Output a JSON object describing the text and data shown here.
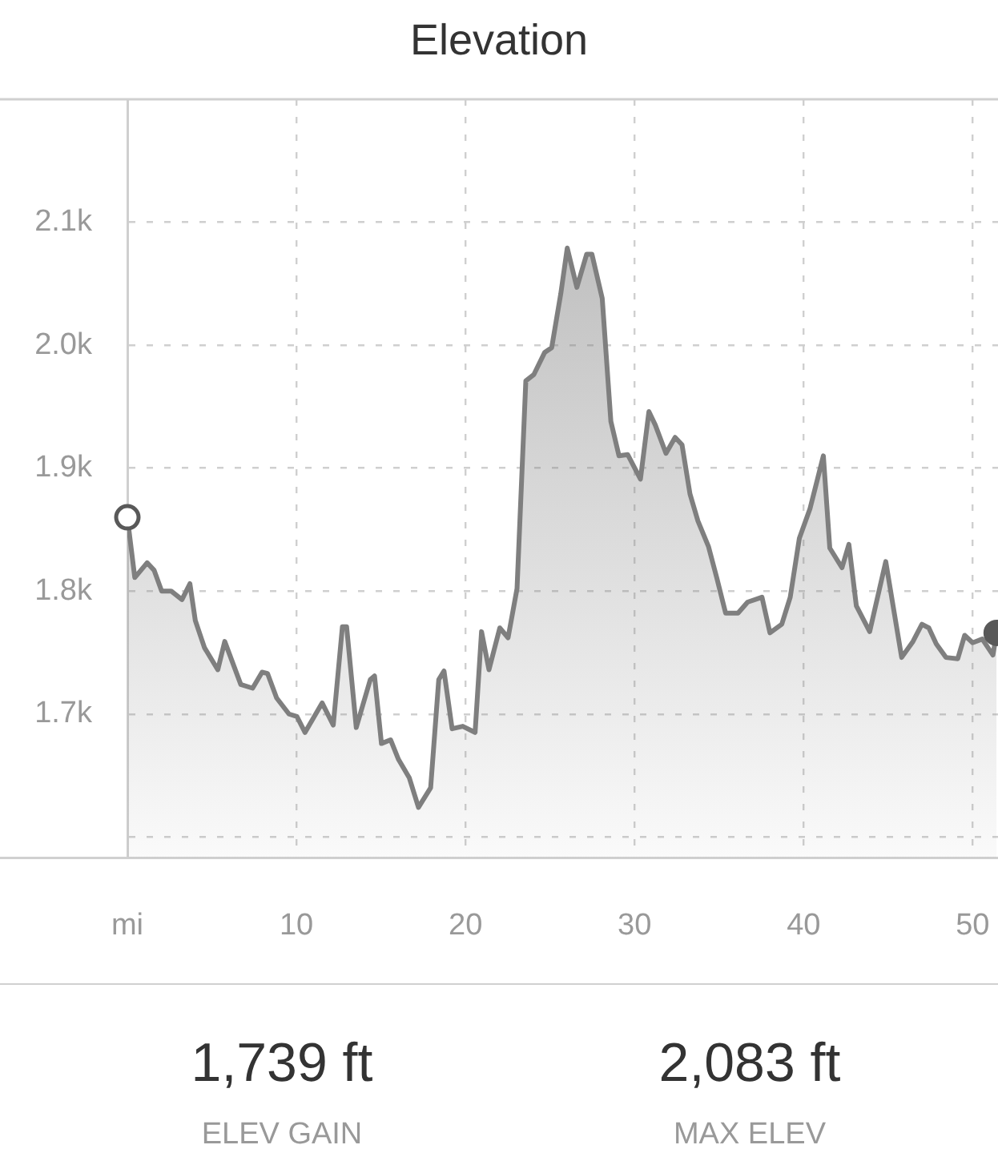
{
  "chart_data": {
    "type": "area",
    "title": "Elevation",
    "x": [
      0,
      0.44,
      1.17,
      1.58,
      2.03,
      2.59,
      3.23,
      3.7,
      4.02,
      4.56,
      5.35,
      5.76,
      6.71,
      7.41,
      7.97,
      8.29,
      8.83,
      9.56,
      10.03,
      10.51,
      11.52,
      12.18,
      12.72,
      12.97,
      13.54,
      14.37,
      14.62,
      15.03,
      15.57,
      16.04,
      16.68,
      17.22,
      17.94,
      18.42,
      18.73,
      19.21,
      19.84,
      20.57,
      20.95,
      21.39,
      22.03,
      22.52,
      23.05,
      23.57,
      24.04,
      24.68,
      25.1,
      25.64,
      26.02,
      26.59,
      27.17,
      27.48,
      28.09,
      28.6,
      29.08,
      29.6,
      30.35,
      30.85,
      31.23,
      31.86,
      32.4,
      32.81,
      33.28,
      33.75,
      34.38,
      34.86,
      35.39,
      36.12,
      36.69,
      37.54,
      38.01,
      38.71,
      39.21,
      39.75,
      40.38,
      41.17,
      41.55,
      42.27,
      42.68,
      43.12,
      43.91,
      44.86,
      45.8,
      46.47,
      47.0,
      47.41,
      47.85,
      48.42,
      49.12,
      49.53,
      50.0,
      50.57,
      51.2,
      51.42
    ],
    "series": [
      {
        "color": "#7f7f7f",
        "values": [
          1860,
          1811,
          1823,
          1817,
          1800,
          1800,
          1793,
          1806,
          1776,
          1754,
          1736,
          1759,
          1724,
          1721,
          1734,
          1733,
          1713,
          1700,
          1698,
          1685,
          1709,
          1691,
          1771,
          1771,
          1689,
          1728,
          1731,
          1676,
          1679,
          1663,
          1648,
          1624,
          1640,
          1728,
          1735,
          1688,
          1690,
          1685,
          1767,
          1736,
          1770,
          1762,
          1802,
          1971,
          1976,
          1994,
          1998,
          2042,
          2079,
          2047,
          2074,
          2074,
          2038,
          1938,
          1910,
          1911,
          1891,
          1946,
          1935,
          1912,
          1925,
          1919,
          1879,
          1857,
          1836,
          1811,
          1782,
          1782,
          1791,
          1795,
          1766,
          1773,
          1795,
          1843,
          1867,
          1910,
          1835,
          1819,
          1838,
          1788,
          1767,
          1824,
          1746,
          1759,
          1773,
          1770,
          1757,
          1746,
          1745,
          1764,
          1758,
          1761,
          1748,
          1766
        ]
      },
      {
        "type": "scatter",
        "marker": "circle",
        "x": [
          0,
          51.42
        ],
        "values": [
          1860,
          1766
        ],
        "color": "#595959",
        "colors": [
          "#ffffff",
          "#595959"
        ]
      }
    ],
    "xlim": [
      0,
      51.5
    ],
    "ylim": [
      1583,
      2200
    ],
    "xticks": [
      {
        "value": 0,
        "label": "mi"
      },
      10,
      20,
      30,
      40,
      50
    ],
    "yticks": [
      {
        "value": 1600,
        "label": null
      },
      {
        "value": 1700,
        "label": "1.7k"
      },
      {
        "value": 1800,
        "label": "1.8k"
      },
      {
        "value": 1900,
        "label": "1.9k"
      },
      {
        "value": 2000,
        "label": "2.0k"
      },
      {
        "value": 2100,
        "label": "2.1k"
      }
    ],
    "grid": true,
    "marker": "none",
    "line_style": "solid",
    "annotations": [
      "1,739 ft",
      "ELEV GAIN",
      "2,083 ft",
      "MAX ELEV"
    ]
  }
}
